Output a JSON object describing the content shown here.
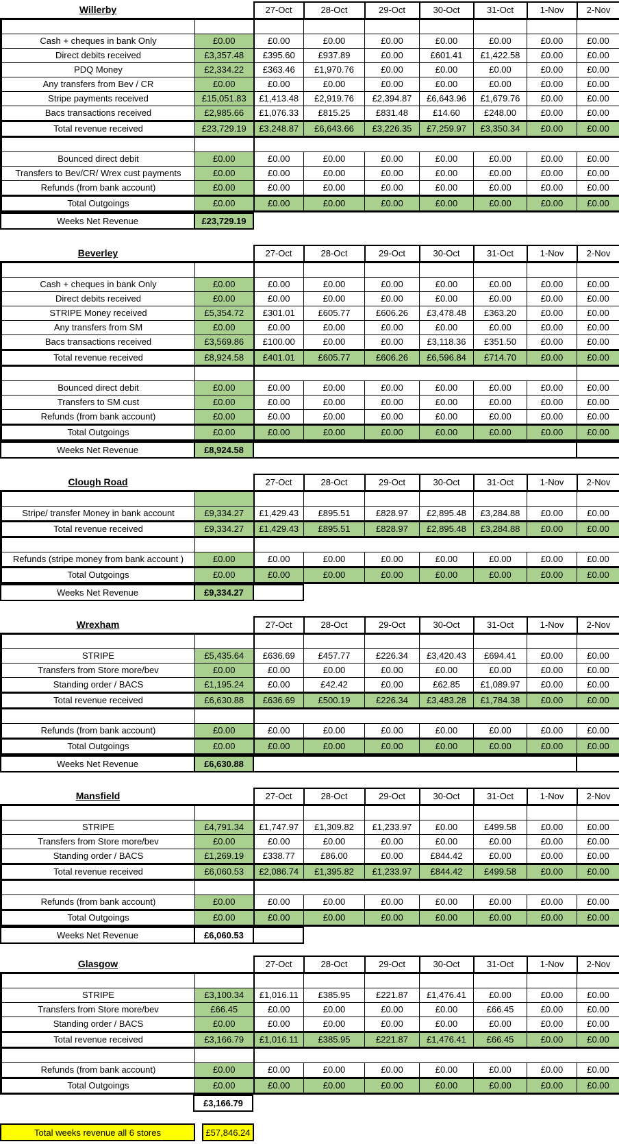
{
  "dates": [
    "27-Oct",
    "28-Oct",
    "29-Oct",
    "30-Oct",
    "31-Oct",
    "1-Nov",
    "2-Nov"
  ],
  "colors": {
    "highlight_green": "#A9D08E",
    "highlight_yellow": "#FFFF00",
    "border": "#000000"
  },
  "sections": [
    {
      "name": "Willerby",
      "income_rows": [
        {
          "label": "Cash + cheques in bank Only",
          "week": "£0.00",
          "days": [
            "£0.00",
            "£0.00",
            "£0.00",
            "£0.00",
            "£0.00",
            "£0.00",
            "£0.00"
          ]
        },
        {
          "label": "Direct debits received",
          "week": "£3,357.48",
          "days": [
            "£395.60",
            "£937.89",
            "£0.00",
            "£601.41",
            "£1,422.58",
            "£0.00",
            "£0.00"
          ]
        },
        {
          "label": "PDQ Money",
          "week": "£2,334.22",
          "days": [
            "£363.46",
            "£1,970.76",
            "£0.00",
            "£0.00",
            "£0.00",
            "£0.00",
            "£0.00"
          ]
        },
        {
          "label": "Any transfers from Bev / CR",
          "week": "£0.00",
          "days": [
            "£0.00",
            "£0.00",
            "£0.00",
            "£0.00",
            "£0.00",
            "£0.00",
            "£0.00"
          ]
        },
        {
          "label": "Stripe payments received",
          "week": "£15,051.83",
          "days": [
            "£1,413.48",
            "£2,919.76",
            "£2,394.87",
            "£6,643.96",
            "£1,679.76",
            "£0.00",
            "£0.00"
          ]
        },
        {
          "label": "Bacs transactions received",
          "week": "£2,985.66",
          "days": [
            "£1,076.33",
            "£815.25",
            "£831.48",
            "£14.60",
            "£248.00",
            "£0.00",
            "£0.00"
          ]
        }
      ],
      "total_revenue": {
        "label": "Total revenue received",
        "week": "£23,729.19",
        "days": [
          "£3,248.87",
          "£6,643.66",
          "£3,226.35",
          "£7,259.97",
          "£3,350.34",
          "£0.00",
          "£0.00"
        ]
      },
      "outgoing_rows": [
        {
          "label": "Bounced direct debit",
          "week": "£0.00",
          "days": [
            "£0.00",
            "£0.00",
            "£0.00",
            "£0.00",
            "£0.00",
            "£0.00",
            "£0.00"
          ]
        },
        {
          "label": "Transfers to Bev/CR/ Wrex  cust payments",
          "week": "£0.00",
          "days": [
            "£0.00",
            "£0.00",
            "£0.00",
            "£0.00",
            "£0.00",
            "£0.00",
            "£0.00"
          ]
        },
        {
          "label": "Refunds (from bank account)",
          "week": "£0.00",
          "days": [
            "£0.00",
            "£0.00",
            "£0.00",
            "£0.00",
            "£0.00",
            "£0.00",
            "£0.00"
          ]
        }
      ],
      "total_outgoings": {
        "label": "Total Outgoings",
        "week": "£0.00",
        "days": [
          "£0.00",
          "£0.00",
          "£0.00",
          "£0.00",
          "£0.00",
          "£0.00",
          "£0.00"
        ]
      },
      "net_revenue": {
        "label": "Weeks Net Revenue",
        "value": "£23,729.19"
      }
    },
    {
      "name": "Beverley",
      "income_rows": [
        {
          "label": "Cash + cheques in bank Only",
          "week": "£0.00",
          "days": [
            "£0.00",
            "£0.00",
            "£0.00",
            "£0.00",
            "£0.00",
            "£0.00",
            "£0.00"
          ]
        },
        {
          "label": "Direct debits received",
          "week": "£0.00",
          "days": [
            "£0.00",
            "£0.00",
            "£0.00",
            "£0.00",
            "£0.00",
            "£0.00",
            "£0.00"
          ]
        },
        {
          "label": "STRIPE Money received",
          "week": "£5,354.72",
          "days": [
            "£301.01",
            "£605.77",
            "£606.26",
            "£3,478.48",
            "£363.20",
            "£0.00",
            "£0.00"
          ]
        },
        {
          "label": "Any transfers from SM",
          "week": "£0.00",
          "days": [
            "£0.00",
            "£0.00",
            "£0.00",
            "£0.00",
            "£0.00",
            "£0.00",
            "£0.00"
          ]
        },
        {
          "label": "Bacs transactions received",
          "week": "£3,569.86",
          "days": [
            "£100.00",
            "£0.00",
            "£0.00",
            "£3,118.36",
            "£351.50",
            "£0.00",
            "£0.00"
          ]
        }
      ],
      "total_revenue": {
        "label": "Total revenue received",
        "week": "£8,924.58",
        "days": [
          "£401.01",
          "£605.77",
          "£606.26",
          "£6,596.84",
          "£714.70",
          "£0.00",
          "£0.00"
        ]
      },
      "outgoing_rows": [
        {
          "label": "Bounced direct debit",
          "week": "£0.00",
          "days": [
            "£0.00",
            "£0.00",
            "£0.00",
            "£0.00",
            "£0.00",
            "£0.00",
            "£0.00"
          ]
        },
        {
          "label": "Transfers to SM cust",
          "week": "£0.00",
          "days": [
            "£0.00",
            "£0.00",
            "£0.00",
            "£0.00",
            "£0.00",
            "£0.00",
            "£0.00"
          ]
        },
        {
          "label": "Refunds (from bank account)",
          "week": "£0.00",
          "days": [
            "£0.00",
            "£0.00",
            "£0.00",
            "£0.00",
            "£0.00",
            "£0.00",
            "£0.00"
          ]
        }
      ],
      "total_outgoings": {
        "label": "Total Outgoings",
        "week": "£0.00",
        "days": [
          "£0.00",
          "£0.00",
          "£0.00",
          "£0.00",
          "£0.00",
          "£0.00",
          "£0.00"
        ]
      },
      "net_revenue": {
        "label": "Weeks Net Revenue",
        "value": "£8,924.58"
      }
    },
    {
      "name": "Clough Road",
      "income_rows": [
        {
          "label": "Stripe/ transfer Money  in bank account",
          "week": "£9,334.27",
          "days": [
            "£1,429.43",
            "£895.51",
            "£828.97",
            "£2,895.48",
            "£3,284.88",
            "£0.00",
            "£0.00"
          ]
        }
      ],
      "total_revenue": {
        "label": "Total revenue received",
        "week": "£9,334.27",
        "days": [
          "£1,429.43",
          "£895.51",
          "£828.97",
          "£2,895.48",
          "£3,284.88",
          "£0.00",
          "£0.00"
        ]
      },
      "outgoing_rows": [
        {
          "label": "Refunds (stripe money from bank account )",
          "week": "£0.00",
          "days": [
            "£0.00",
            "£0.00",
            "£0.00",
            "£0.00",
            "£0.00",
            "£0.00",
            "£0.00"
          ]
        }
      ],
      "total_outgoings": {
        "label": "Total Outgoings",
        "week": "£0.00",
        "days": [
          "£0.00",
          "£0.00",
          "£0.00",
          "£0.00",
          "£0.00",
          "£0.00",
          "£0.00"
        ]
      },
      "net_revenue": {
        "label": "Weeks Net Revenue",
        "value": "£9,334.27"
      }
    },
    {
      "name": "Wrexham",
      "income_rows": [
        {
          "label": "STRIPE",
          "week": "£5,435.64",
          "days": [
            "£636.69",
            "£457.77",
            "£226.34",
            "£3,420.43",
            "£694.41",
            "£0.00",
            "£0.00"
          ]
        },
        {
          "label": "Transfers from Store more/bev",
          "week": "£0.00",
          "days": [
            "£0.00",
            "£0.00",
            "£0.00",
            "£0.00",
            "£0.00",
            "£0.00",
            "£0.00"
          ]
        },
        {
          "label": "Standing order / BACS",
          "week": "£1,195.24",
          "days": [
            "£0.00",
            "£42.42",
            "£0.00",
            "£62.85",
            "£1,089.97",
            "£0.00",
            "£0.00"
          ]
        }
      ],
      "total_revenue": {
        "label": "Total revenue received",
        "week": "£6,630.88",
        "days": [
          "£636.69",
          "£500.19",
          "£226.34",
          "£3,483.28",
          "£1,784.38",
          "£0.00",
          "£0.00"
        ]
      },
      "outgoing_rows": [
        {
          "label": "Refunds (from bank account)",
          "week": "£0.00",
          "days": [
            "£0.00",
            "£0.00",
            "£0.00",
            "£0.00",
            "£0.00",
            "£0.00",
            "£0.00"
          ]
        }
      ],
      "total_outgoings": {
        "label": "Total Outgoings",
        "week": "£0.00",
        "days": [
          "£0.00",
          "£0.00",
          "£0.00",
          "£0.00",
          "£0.00",
          "£0.00",
          "£0.00"
        ]
      },
      "net_revenue": {
        "label": "Weeks Net Revenue",
        "value": "£6,630.88"
      }
    },
    {
      "name": "Mansfield",
      "income_rows": [
        {
          "label": "STRIPE",
          "week": "£4,791.34",
          "days": [
            "£1,747.97",
            "£1,309.82",
            "£1,233.97",
            "£0.00",
            "£499.58",
            "£0.00",
            "£0.00"
          ]
        },
        {
          "label": "Transfers from Store more/bev",
          "week": "£0.00",
          "days": [
            "£0.00",
            "£0.00",
            "£0.00",
            "£0.00",
            "£0.00",
            "£0.00",
            "£0.00"
          ]
        },
        {
          "label": "Standing order / BACS",
          "week": "£1,269.19",
          "days": [
            "£338.77",
            "£86.00",
            "£0.00",
            "£844.42",
            "£0.00",
            "£0.00",
            "£0.00"
          ]
        }
      ],
      "total_revenue": {
        "label": "Total revenue received",
        "week": "£6,060.53",
        "days": [
          "£2,086.74",
          "£1,395.82",
          "£1,233.97",
          "£844.42",
          "£499.58",
          "£0.00",
          "£0.00"
        ]
      },
      "outgoing_rows": [
        {
          "label": "Refunds (from bank account)",
          "week": "£0.00",
          "days": [
            "£0.00",
            "£0.00",
            "£0.00",
            "£0.00",
            "£0.00",
            "£0.00",
            "£0.00"
          ]
        }
      ],
      "total_outgoings": {
        "label": "Total Outgoings",
        "week": "£0.00",
        "days": [
          "£0.00",
          "£0.00",
          "£0.00",
          "£0.00",
          "£0.00",
          "£0.00",
          "£0.00"
        ]
      },
      "net_revenue": {
        "label": "Weeks Net Revenue",
        "value": "£6,060.53"
      }
    },
    {
      "name": "Glasgow",
      "income_rows": [
        {
          "label": "STRIPE",
          "week": "£3,100.34",
          "days": [
            "£1,016.11",
            "£385.95",
            "£221.87",
            "£1,476.41",
            "£0.00",
            "£0.00",
            "£0.00"
          ]
        },
        {
          "label": "Transfers from Store more/bev",
          "week": "£66.45",
          "days": [
            "£0.00",
            "£0.00",
            "£0.00",
            "£0.00",
            "£66.45",
            "£0.00",
            "£0.00"
          ]
        },
        {
          "label": "Standing order / BACS",
          "week": "£0.00",
          "days": [
            "£0.00",
            "£0.00",
            "£0.00",
            "£0.00",
            "£0.00",
            "£0.00",
            "£0.00"
          ]
        }
      ],
      "total_revenue": {
        "label": "Total revenue received",
        "week": "£3,166.79",
        "days": [
          "£1,016.11",
          "£385.95",
          "£221.87",
          "£1,476.41",
          "£66.45",
          "£0.00",
          "£0.00"
        ]
      },
      "outgoing_rows": [
        {
          "label": "Refunds (from bank account)",
          "week": "£0.00",
          "days": [
            "£0.00",
            "£0.00",
            "£0.00",
            "£0.00",
            "£0.00",
            "£0.00",
            "£0.00"
          ]
        }
      ],
      "total_outgoings": {
        "label": "Total Outgoings",
        "week": "£0.00",
        "days": [
          "£0.00",
          "£0.00",
          "£0.00",
          "£0.00",
          "£0.00",
          "£0.00",
          "£0.00"
        ]
      },
      "net_revenue": {
        "label": "",
        "value": "£3,166.79"
      }
    }
  ],
  "grand_total": {
    "label": "Total weeks revenue all 6 stores",
    "value": "£57,846.24"
  }
}
